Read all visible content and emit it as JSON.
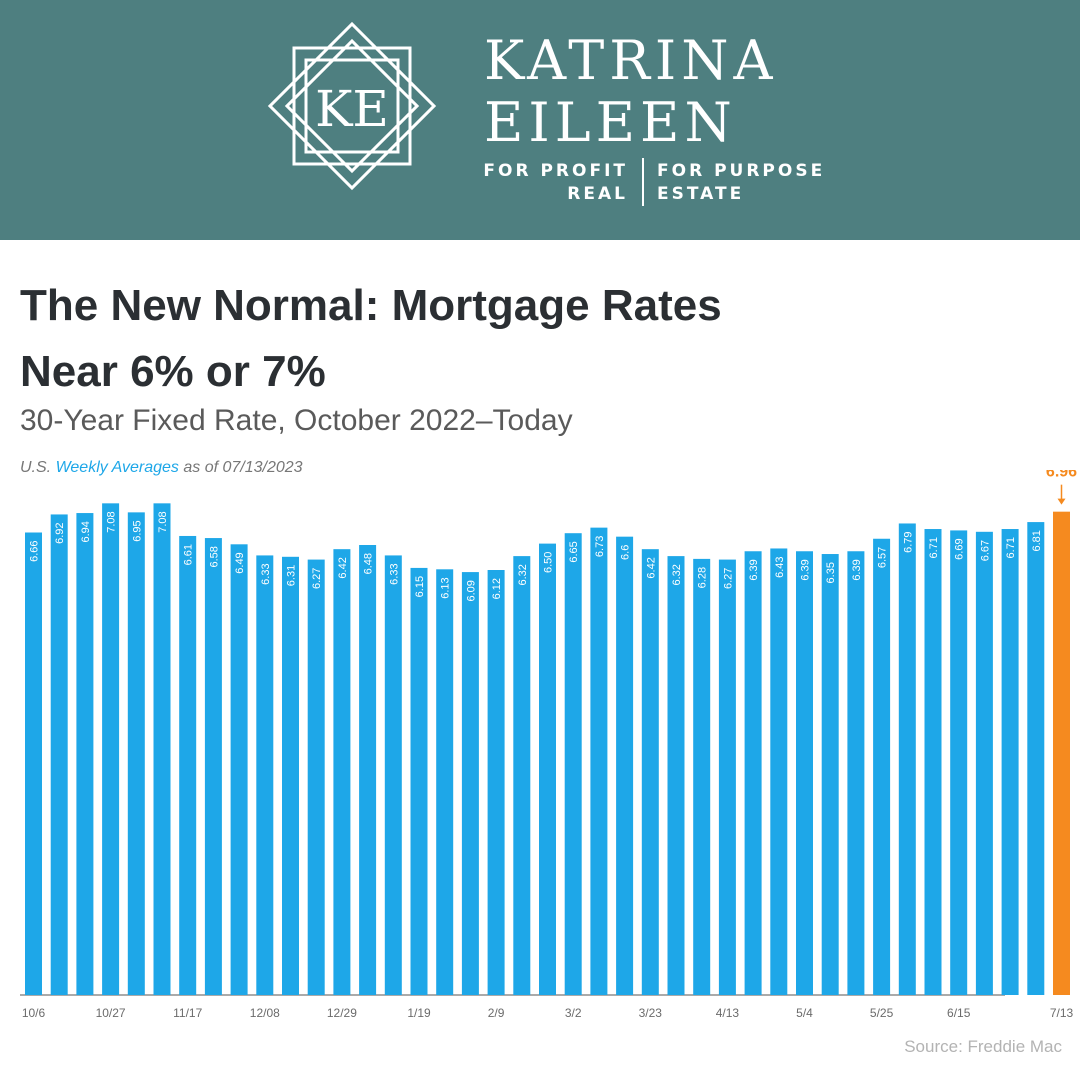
{
  "brand": {
    "monogram": "KE",
    "name_line1": "KATRINA",
    "name_line2": "EILEEN",
    "tagline_left_1": "FOR PROFIT",
    "tagline_left_2": "REAL",
    "tagline_right_1": "FOR PURPOSE",
    "tagline_right_2": "ESTATE"
  },
  "title_line1": "The New Normal: Mortgage Rates",
  "title_line2": "Near 6% or 7%",
  "subtitle": "30-Year Fixed Rate, October 2022–Today",
  "note": {
    "prefix": "U.S.",
    "highlight": "Weekly Averages",
    "suffix": "as of 07/13/2023"
  },
  "source": "Source: Freddie Mac",
  "colors": {
    "banner": "#4e7f80",
    "bar": "#1ea7e8",
    "highlight_bar": "#f58a1f",
    "title": "#2b2f33"
  },
  "chart_data": {
    "type": "bar",
    "ylim": [
      0,
      7.2
    ],
    "grid": false,
    "values": [
      6.66,
      6.92,
      6.94,
      7.08,
      6.95,
      7.08,
      6.61,
      6.58,
      6.49,
      6.33,
      6.31,
      6.27,
      6.42,
      6.48,
      6.33,
      6.15,
      6.13,
      6.09,
      6.12,
      6.32,
      6.5,
      6.65,
      6.73,
      6.6,
      6.42,
      6.32,
      6.28,
      6.27,
      6.39,
      6.43,
      6.39,
      6.35,
      6.39,
      6.57,
      6.79,
      6.71,
      6.69,
      6.67,
      6.71,
      6.81,
      6.96
    ],
    "value_labels": [
      "6.66",
      "6.92",
      "6.94",
      "7.08",
      "6.95",
      "7.08",
      "6.61",
      "6.58",
      "6.49",
      "6.33",
      "6.31",
      "6.27",
      "6.42",
      "6.48",
      "6.33",
      "6.15",
      "6.13",
      "6.09",
      "6.12",
      "6.32",
      "6.50",
      "6.65",
      "6.73",
      "6.6",
      "6.42",
      "6.32",
      "6.28",
      "6.27",
      "6.39",
      "6.43",
      "6.39",
      "6.35",
      "6.39",
      "6.57",
      "6.79",
      "6.71",
      "6.69",
      "6.67",
      "6.71",
      "6.81",
      "6.96"
    ],
    "x_tick_labels": [
      {
        "index": 0,
        "label": "10/6"
      },
      {
        "index": 3,
        "label": "10/27"
      },
      {
        "index": 6,
        "label": "11/17"
      },
      {
        "index": 9,
        "label": "12/08"
      },
      {
        "index": 12,
        "label": "12/29"
      },
      {
        "index": 15,
        "label": "1/19"
      },
      {
        "index": 18,
        "label": "2/9"
      },
      {
        "index": 21,
        "label": "3/2"
      },
      {
        "index": 24,
        "label": "3/23"
      },
      {
        "index": 27,
        "label": "4/13"
      },
      {
        "index": 30,
        "label": "5/4"
      },
      {
        "index": 33,
        "label": "5/25"
      },
      {
        "index": 36,
        "label": "6/15"
      },
      {
        "index": 40,
        "label": "7/13"
      }
    ],
    "highlight_index": 40
  }
}
